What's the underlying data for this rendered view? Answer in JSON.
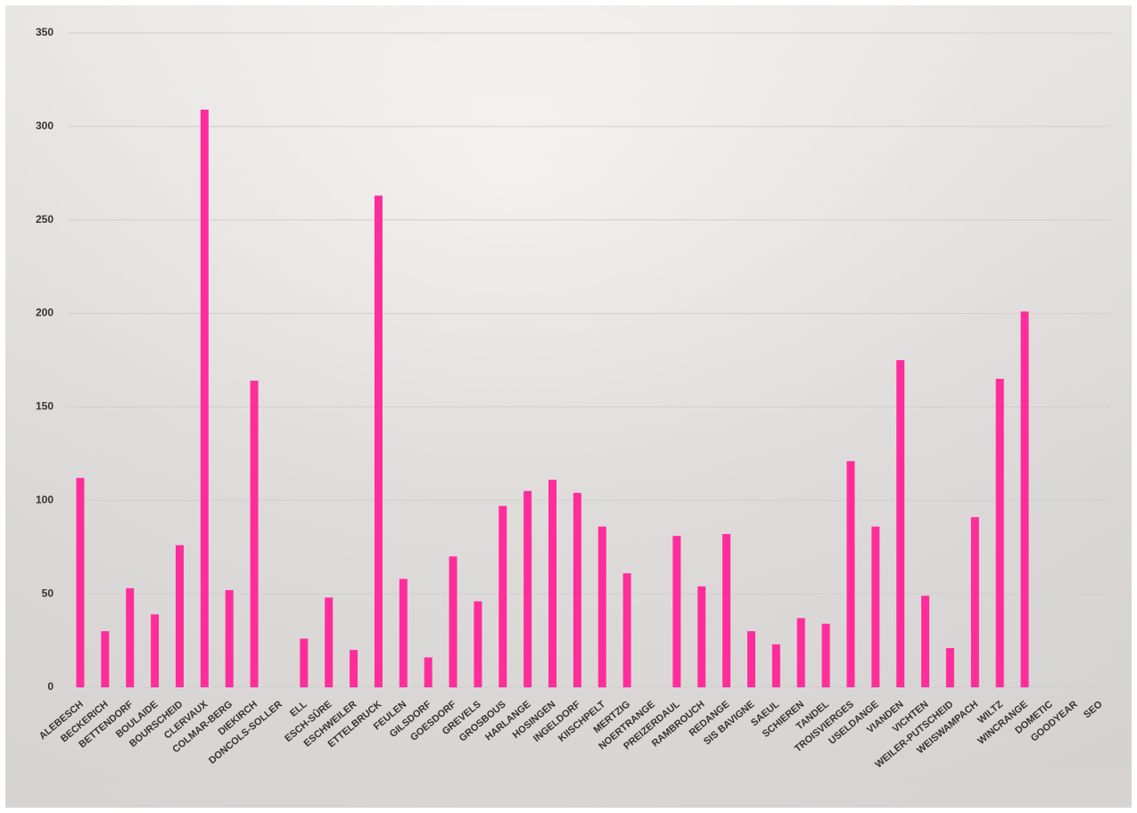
{
  "chart_data": {
    "type": "bar",
    "categories": [
      "ALEBESCH",
      "BECKERICH",
      "BETTENDORF",
      "BOULAIDE",
      "BOURSCHEID",
      "CLERVAUX",
      "COLMAR-BERG",
      "DIEKIRCH",
      "DONCOLS-SOLLER",
      "ELL",
      "ESCH-SÛRE",
      "ESCHWEILER",
      "ETTELBRUCK",
      "FEULEN",
      "GILSDORF",
      "GOESDORF",
      "GREVELS",
      "GROSBOUS",
      "HARLANGE",
      "HOSINGEN",
      "INGELDORF",
      "KIISCHPELT",
      "MERTZIG",
      "NOERTRANGE",
      "PREIZERDAUL",
      "RAMBROUCH",
      "REDANGE",
      "SIS BAVIGNE",
      "SAEUL",
      "SCHIEREN",
      "TANDEL",
      "TROISVIERGES",
      "USELDANGE",
      "VIANDEN",
      "VICHTEN",
      "WEILER-PUTSCHEID",
      "WEISWAMPACH",
      "WILTZ",
      "WINCRANGE",
      "DOMETIC",
      "GOODYEAR",
      "SEO"
    ],
    "values": [
      112,
      30,
      53,
      39,
      76,
      309,
      52,
      164,
      0,
      26,
      48,
      20,
      263,
      58,
      16,
      70,
      46,
      97,
      105,
      111,
      104,
      86,
      61,
      0,
      81,
      54,
      82,
      30,
      23,
      37,
      34,
      121,
      86,
      175,
      49,
      21,
      91,
      165,
      201,
      0,
      0,
      0
    ],
    "color": "#ff2d9b",
    "ylim": [
      0,
      350
    ],
    "yticks": [
      0,
      50,
      100,
      150,
      200,
      250,
      300,
      350
    ],
    "grid": true
  }
}
